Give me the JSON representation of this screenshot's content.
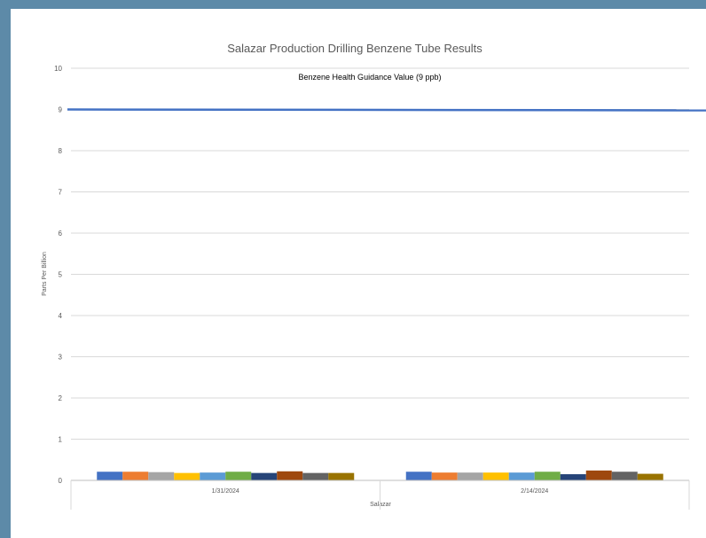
{
  "chart_data": {
    "type": "bar",
    "title": "Salazar Production Drilling Benzene Tube Results",
    "xlabel": "Salazar",
    "ylabel": "Parts Per Billion",
    "ylim": [
      0,
      10
    ],
    "yticks": [
      0,
      1,
      2,
      3,
      4,
      5,
      6,
      7,
      8,
      9,
      10
    ],
    "grid": true,
    "categories": [
      "1/31/2024",
      "2/14/2024"
    ],
    "series": [
      {
        "color": "#4472c4",
        "values": [
          0.21,
          0.21
        ]
      },
      {
        "color": "#ed7d31",
        "values": [
          0.21,
          0.19
        ]
      },
      {
        "color": "#a5a5a5",
        "values": [
          0.2,
          0.19
        ]
      },
      {
        "color": "#ffc000",
        "values": [
          0.18,
          0.19
        ]
      },
      {
        "color": "#5b9bd5",
        "values": [
          0.19,
          0.19
        ]
      },
      {
        "color": "#70ad47",
        "values": [
          0.21,
          0.21
        ]
      },
      {
        "color": "#264478",
        "values": [
          0.18,
          0.15
        ]
      },
      {
        "color": "#9e480e",
        "values": [
          0.22,
          0.24
        ]
      },
      {
        "color": "#636363",
        "values": [
          0.18,
          0.21
        ]
      },
      {
        "color": "#997300",
        "values": [
          0.18,
          0.16
        ]
      }
    ],
    "reference_line": {
      "label": "Benzene Health Guidance Value (9 ppb)",
      "value": 9,
      "color": "#4472c4"
    }
  }
}
